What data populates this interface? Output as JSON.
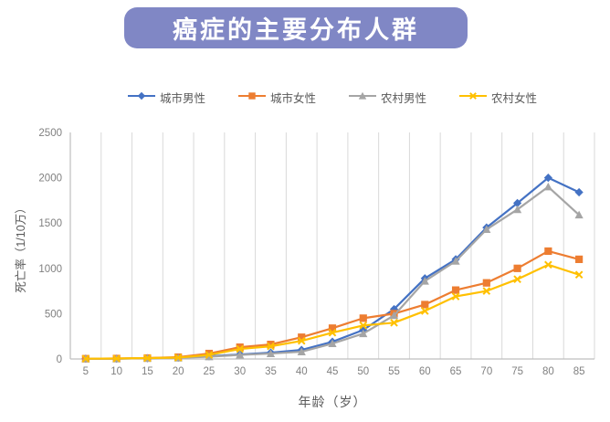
{
  "banner": {
    "title": "癌症的主要分布人群",
    "background_color": "#8087c5",
    "text_color": "#ffffff"
  },
  "chart_data": {
    "type": "line",
    "x": [
      5,
      10,
      15,
      20,
      25,
      30,
      35,
      40,
      45,
      50,
      55,
      60,
      65,
      70,
      75,
      80,
      85
    ],
    "xticks": [
      "5",
      "10",
      "15",
      "20",
      "25",
      "30",
      "35",
      "40",
      "45",
      "50",
      "55",
      "60",
      "65",
      "70",
      "75",
      "80",
      "85"
    ],
    "yticks": [
      0,
      500,
      1000,
      1500,
      2000,
      2500
    ],
    "ylim": [
      0,
      2500
    ],
    "xlabel": "年龄（岁）",
    "ylabel": "死亡率（1/10万）",
    "grid": "vertical-only",
    "legend_position": "top",
    "axis_color": "#bfbfbf",
    "gridline_color": "#d9d9d9",
    "tick_label_color": "#808080",
    "series": [
      {
        "name": "城市男性",
        "color": "#4472c4",
        "marker": "diamond",
        "values": [
          3,
          3,
          8,
          15,
          30,
          50,
          70,
          100,
          190,
          320,
          550,
          890,
          1100,
          1450,
          1720,
          2000,
          1840
        ]
      },
      {
        "name": "城市女性",
        "color": "#ed7d31",
        "marker": "square",
        "values": [
          3,
          5,
          10,
          20,
          60,
          130,
          160,
          240,
          340,
          450,
          500,
          600,
          760,
          840,
          1000,
          1190,
          1100
        ]
      },
      {
        "name": "农村男性",
        "color": "#a5a5a5",
        "marker": "triangle",
        "values": [
          3,
          3,
          8,
          12,
          25,
          45,
          60,
          80,
          170,
          280,
          480,
          860,
          1080,
          1430,
          1650,
          1900,
          1590
        ]
      },
      {
        "name": "农村女性",
        "color": "#ffc000",
        "marker": "x",
        "values": [
          3,
          5,
          10,
          15,
          45,
          110,
          140,
          200,
          290,
          370,
          400,
          530,
          690,
          750,
          880,
          1040,
          930
        ]
      }
    ]
  }
}
